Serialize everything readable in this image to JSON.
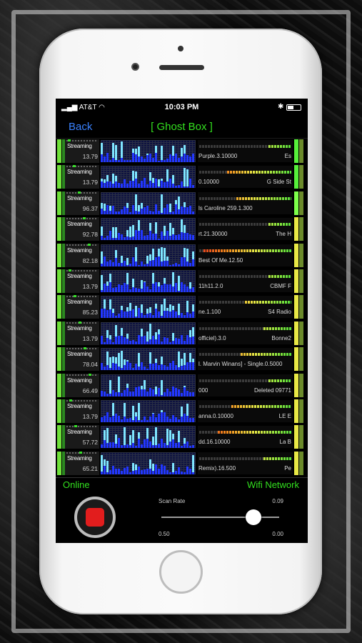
{
  "status_bar": {
    "carrier": "AT&T",
    "time": "10:03 PM",
    "battery_icon": "battery-icon",
    "bluetooth_icon": "bluetooth-icon",
    "wifi_icon": "wifi-icon"
  },
  "nav": {
    "back_label": "Back",
    "title": "[ Ghost Box ]"
  },
  "colors": {
    "accent_green": "#33e11f",
    "link_blue": "#3a82ff",
    "record_red": "#e21d1d",
    "spectrum_bg": "#0e1240"
  },
  "stations": [
    {
      "status": "Streaming",
      "value": "13.79",
      "track": "Purple.3.10000",
      "station": "Es",
      "meter": 0.25,
      "right_color": "#56f03a"
    },
    {
      "status": "Streaming",
      "value": "13.79",
      "track": "0.10000",
      "station": "G Side St",
      "meter": 0.7,
      "right_color": "#56f03a"
    },
    {
      "status": "Streaming",
      "value": "96.37",
      "track": "ls Caroline 259.1.300",
      "station": "",
      "meter": 0.6,
      "right_color": "#7dff4a"
    },
    {
      "status": "Streaming",
      "value": "92.78",
      "track": "rt.21.30000",
      "station": "The H",
      "meter": 0.25,
      "right_color": "#e8e845"
    },
    {
      "status": "Streaming",
      "value": "82.18",
      "track": "Best Of Me.12.50",
      "station": "",
      "meter": 0.95,
      "right_color": "#e8e845"
    },
    {
      "status": "Streaming",
      "value": "13.79",
      "track": "11h11.2.0",
      "station": "CBMF F",
      "meter": 0.25,
      "right_color": "#e8e845"
    },
    {
      "status": "Streaming",
      "value": "85.23",
      "track": "ne.1.100",
      "station": "S4 Radio",
      "meter": 0.5,
      "right_color": "#e8e845"
    },
    {
      "status": "Streaming",
      "value": "13.79",
      "track": "officiel).3.0",
      "station": "Bonne2",
      "meter": 0.3,
      "right_color": "#e8e845"
    },
    {
      "status": "Streaming",
      "value": "78.04",
      "track": "l. Marvin Winans] - Single.0.5000",
      "station": "",
      "meter": 0.55,
      "right_color": "#e8e845"
    },
    {
      "status": "Streaming",
      "value": "66.49",
      "track": "000",
      "station": "Deleted 09771",
      "meter": 0.25,
      "right_color": "#e8e845"
    },
    {
      "status": "Streaming",
      "value": "13.79",
      "track": "anna.0.10000",
      "station": "LE E",
      "meter": 0.65,
      "right_color": "#e8e845"
    },
    {
      "status": "Streaming",
      "value": "57.72",
      "track": "dd.16.10000",
      "station": "La B",
      "meter": 0.8,
      "right_color": "#e8e845"
    },
    {
      "status": "Streaming",
      "value": "65.21",
      "track": "Remix).16.500",
      "station": "Pe",
      "meter": 0.3,
      "right_color": "#e8e845"
    }
  ],
  "footer": {
    "connection_status": "Online",
    "network_type": "Wifi Network",
    "scan_rate_label": "Scan Rate",
    "scan_rate_value": "0.09",
    "slider_min": "0.50",
    "slider_max": "0.00",
    "slider_position": 0.78,
    "record_icon": "stop-record-icon"
  }
}
